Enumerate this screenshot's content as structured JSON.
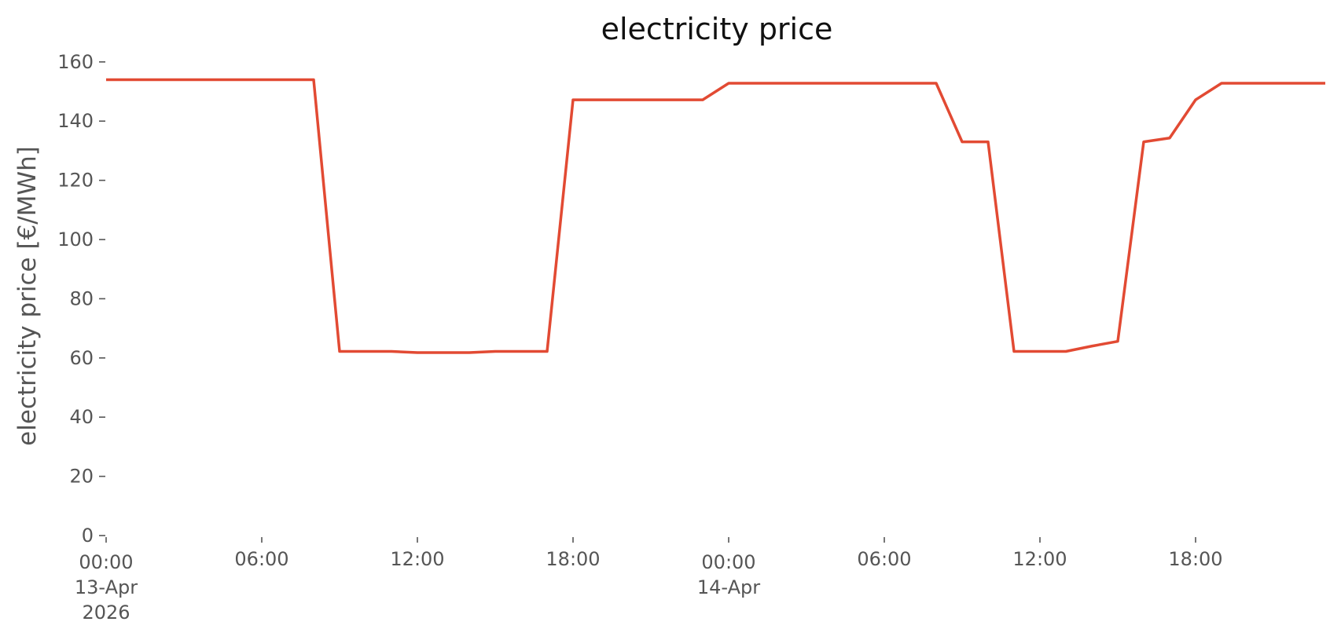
{
  "chart_data": {
    "type": "line",
    "title": "electricity price",
    "ylabel": "electricity price [€/MWh]",
    "xlabel": "",
    "xlim": [
      "2026-04-13T00:00",
      "2026-04-14T23:00"
    ],
    "ylim": [
      0,
      165
    ],
    "yticks": [
      0,
      20,
      40,
      60,
      80,
      100,
      120,
      140,
      160
    ],
    "yticks_labels": [
      "0",
      "20",
      "40",
      "60",
      "80",
      "100",
      "120",
      "140",
      "160"
    ],
    "xticks": [
      {
        "time": "2026-04-13T00:00",
        "label": [
          "00:00",
          "13-Apr",
          "2026"
        ]
      },
      {
        "time": "2026-04-13T06:00",
        "label": [
          "06:00"
        ]
      },
      {
        "time": "2026-04-13T12:00",
        "label": [
          "12:00"
        ]
      },
      {
        "time": "2026-04-13T18:00",
        "label": [
          "18:00"
        ]
      },
      {
        "time": "2026-04-14T00:00",
        "label": [
          "00:00",
          "14-Apr"
        ]
      },
      {
        "time": "2026-04-14T06:00",
        "label": [
          "06:00"
        ]
      },
      {
        "time": "2026-04-14T12:00",
        "label": [
          "12:00"
        ]
      },
      {
        "time": "2026-04-14T18:00",
        "label": [
          "18:00"
        ]
      },
      {
        "time": "2026-04-15T00:00",
        "label": []
      }
    ],
    "grid": false,
    "series": [
      {
        "color": "#E24A33",
        "x": [
          "2026-04-13T00:00",
          "2026-04-13T01:00",
          "2026-04-13T02:00",
          "2026-04-13T03:00",
          "2026-04-13T04:00",
          "2026-04-13T05:00",
          "2026-04-13T06:00",
          "2026-04-13T07:00",
          "2026-04-13T08:00",
          "2026-04-13T09:00",
          "2026-04-13T10:00",
          "2026-04-13T11:00",
          "2026-04-13T12:00",
          "2026-04-13T13:00",
          "2026-04-13T14:00",
          "2026-04-13T15:00",
          "2026-04-13T16:00",
          "2026-04-13T17:00",
          "2026-04-13T18:00",
          "2026-04-13T19:00",
          "2026-04-13T20:00",
          "2026-04-13T21:00",
          "2026-04-13T22:00",
          "2026-04-13T23:00",
          "2026-04-14T00:00",
          "2026-04-14T01:00",
          "2026-04-14T02:00",
          "2026-04-14T03:00",
          "2026-04-14T04:00",
          "2026-04-14T05:00",
          "2026-04-14T06:00",
          "2026-04-14T07:00",
          "2026-04-14T08:00",
          "2026-04-14T09:00",
          "2026-04-14T10:00",
          "2026-04-14T11:00",
          "2026-04-14T12:00",
          "2026-04-14T13:00",
          "2026-04-14T14:00",
          "2026-04-14T15:00",
          "2026-04-14T16:00",
          "2026-04-14T17:00",
          "2026-04-14T18:00",
          "2026-04-14T19:00",
          "2026-04-14T20:00",
          "2026-04-14T21:00",
          "2026-04-14T22:00",
          "2026-04-14T23:00"
        ],
        "values": [
          154,
          154,
          154,
          154,
          154,
          154,
          154,
          154,
          154,
          62.2,
          62.2,
          62.2,
          61.8,
          61.8,
          61.8,
          62.2,
          62.2,
          62.2,
          147.2,
          147.2,
          147.2,
          147.2,
          147.2,
          147.2,
          152.8,
          152.8,
          152.8,
          152.8,
          152.8,
          152.8,
          152.8,
          152.8,
          152.8,
          133,
          133,
          62.2,
          62.2,
          62.2,
          64,
          65.6,
          133,
          134.3,
          147.2,
          152.8,
          152.8,
          152.8,
          152.8,
          152.8
        ]
      }
    ]
  }
}
